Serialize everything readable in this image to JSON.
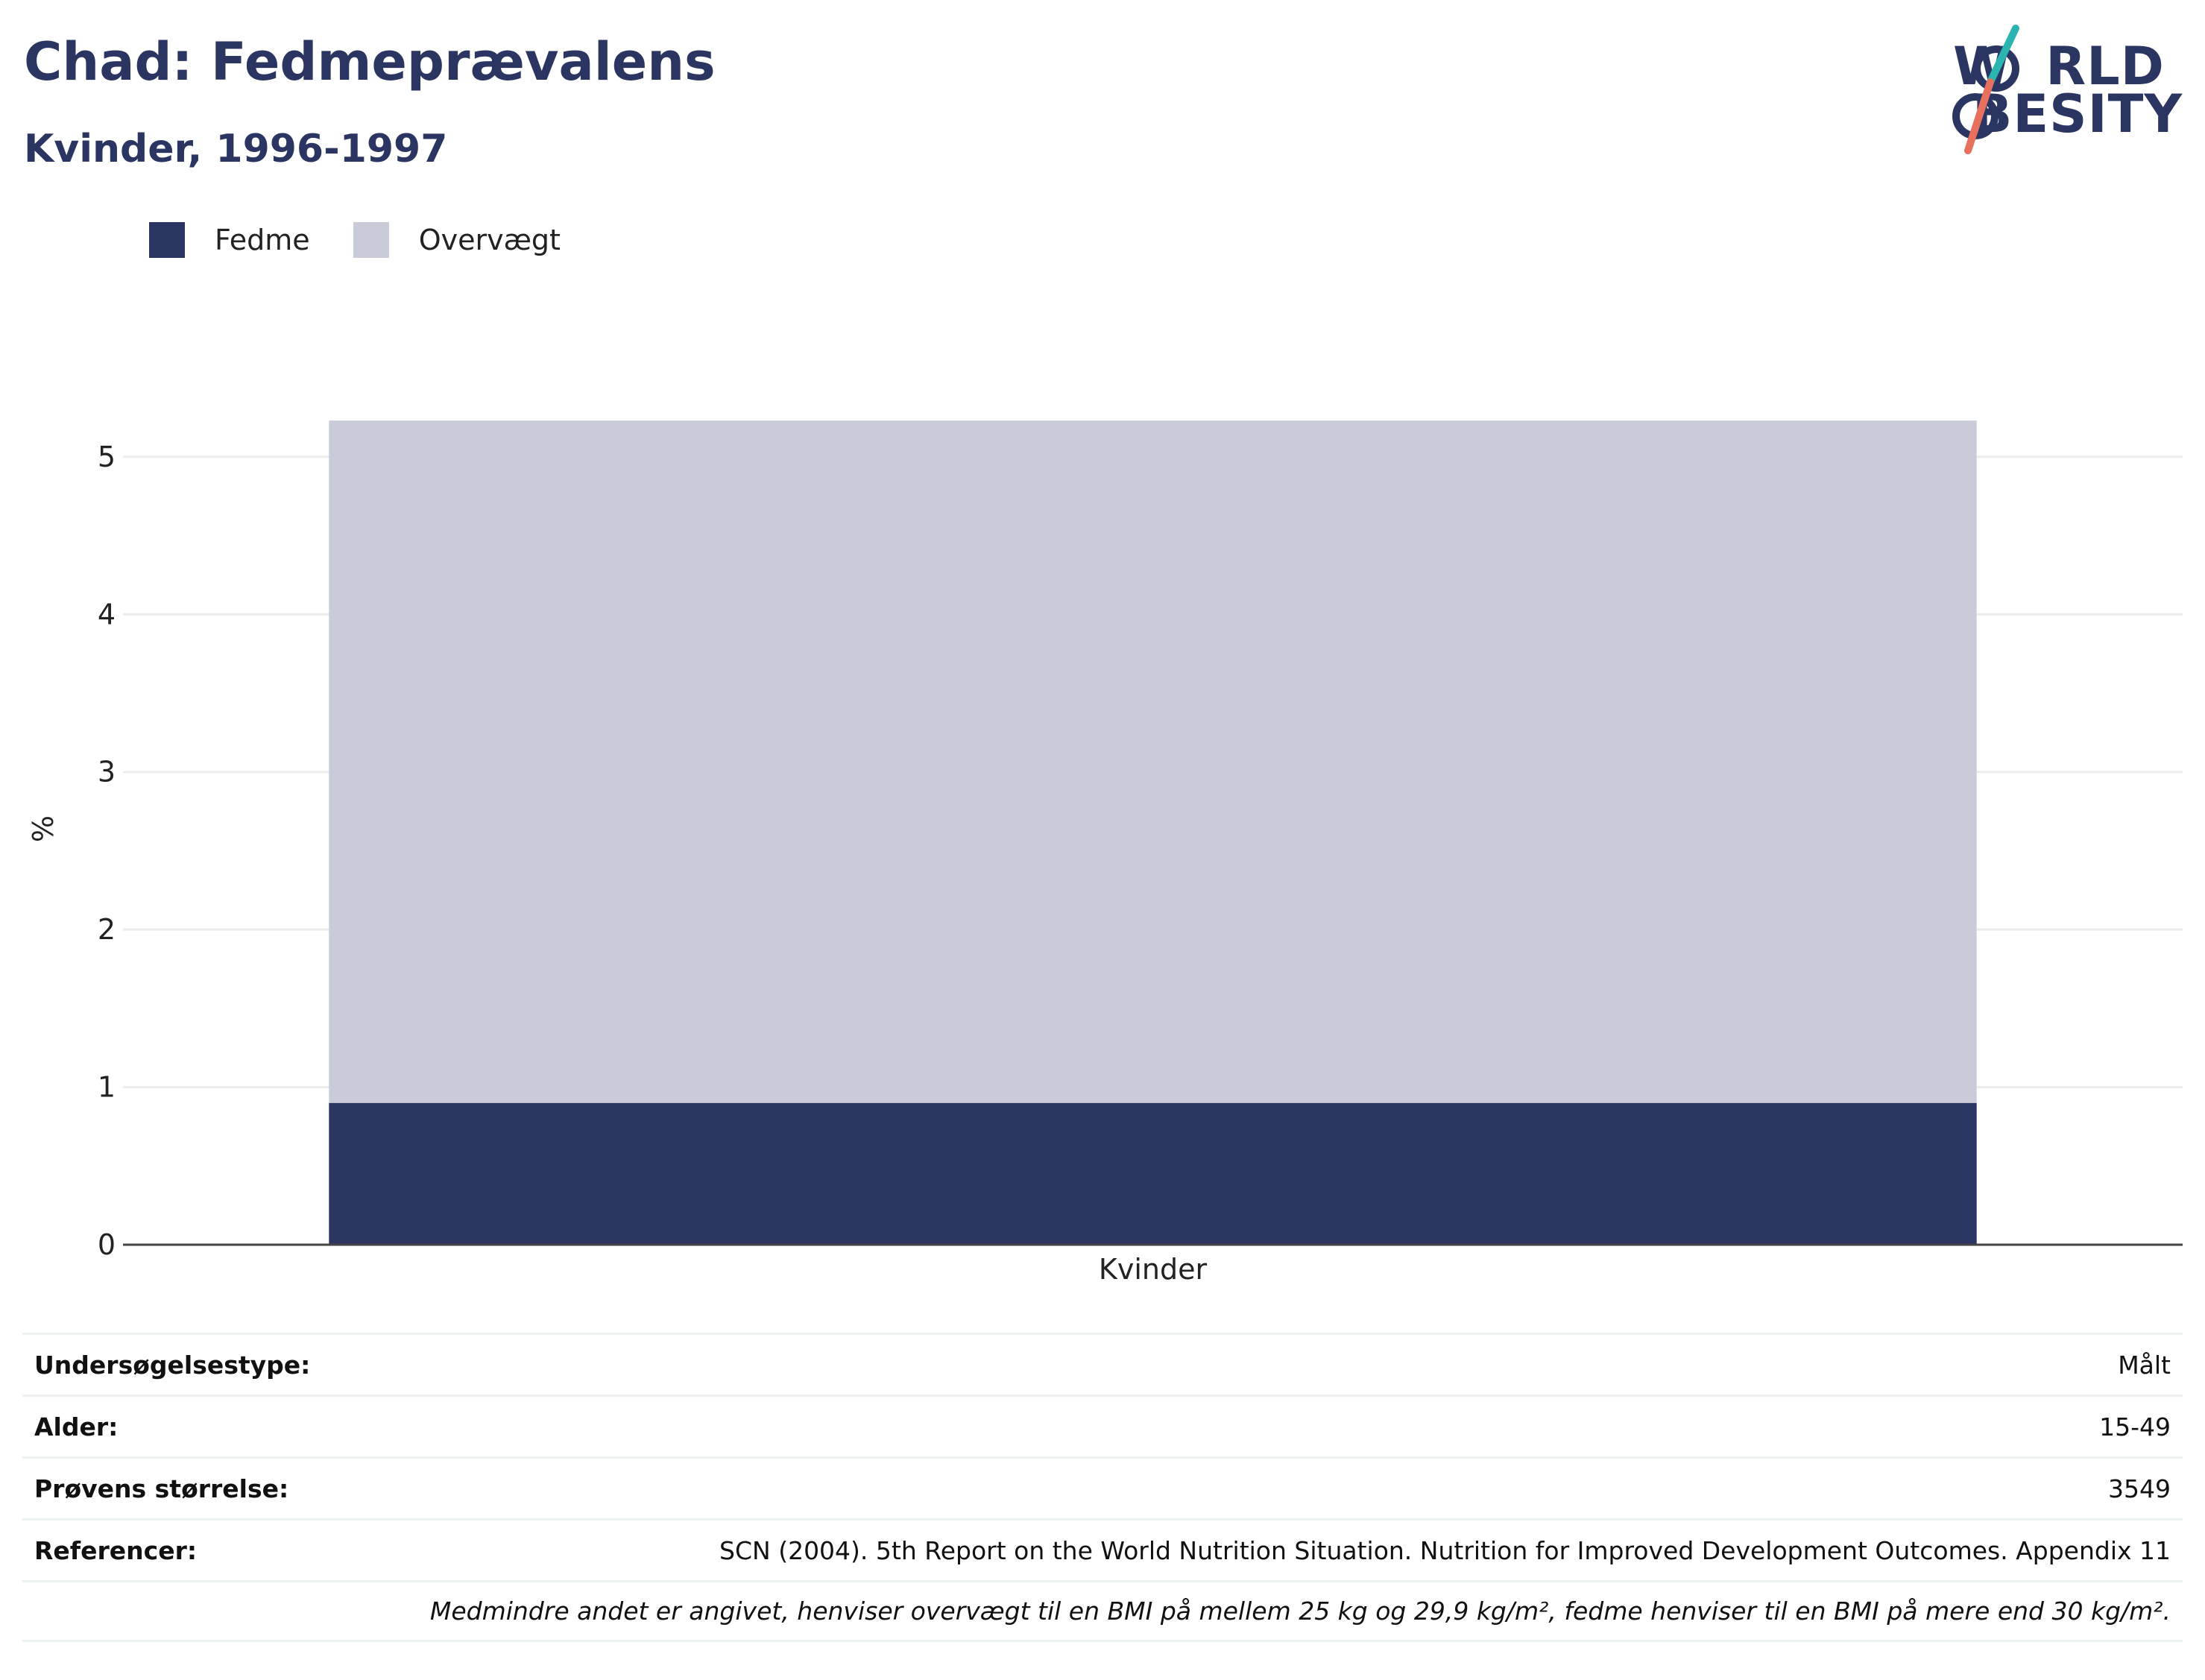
{
  "header": {
    "title": "Chad: Fedmeprævalens",
    "subtitle": "Kvinder, 1996-1997"
  },
  "logo": {
    "line1": "W",
    "line1_rest": "RLD",
    "line2": "BESITY",
    "colors": {
      "navy": "#2b3562",
      "teal": "#2bb5b0",
      "coral": "#e8705f"
    }
  },
  "chart_data": {
    "type": "bar",
    "stacked": true,
    "categories": [
      "Kvinder"
    ],
    "series": [
      {
        "name": "Fedme",
        "values": [
          0.9
        ],
        "color": "#2b3562"
      },
      {
        "name": "Overvægt",
        "values": [
          4.33
        ],
        "color": "#c9ccd8"
      }
    ],
    "ylabel": "%",
    "xlabel": "",
    "ylim": [
      0,
      5.25
    ],
    "yticks": [
      0,
      1,
      2,
      3,
      4,
      5
    ],
    "grid": true,
    "legend_position": "top-left"
  },
  "info": [
    {
      "key": "Undersøgelsestype:",
      "value": "Målt"
    },
    {
      "key": "Alder:",
      "value": "15-49"
    },
    {
      "key": "Prøvens størrelse:",
      "value": "3549"
    },
    {
      "key": "Referencer:",
      "value": "SCN (2004). 5th Report on the World Nutrition Situation. Nutrition for Improved Development Outcomes. Appendix 11"
    }
  ],
  "note": "Medmindre andet er angivet, henviser overvægt til en BMI på mellem 25 kg og 29,9 kg/m², fedme henviser til en BMI på mere end 30 kg/m²."
}
